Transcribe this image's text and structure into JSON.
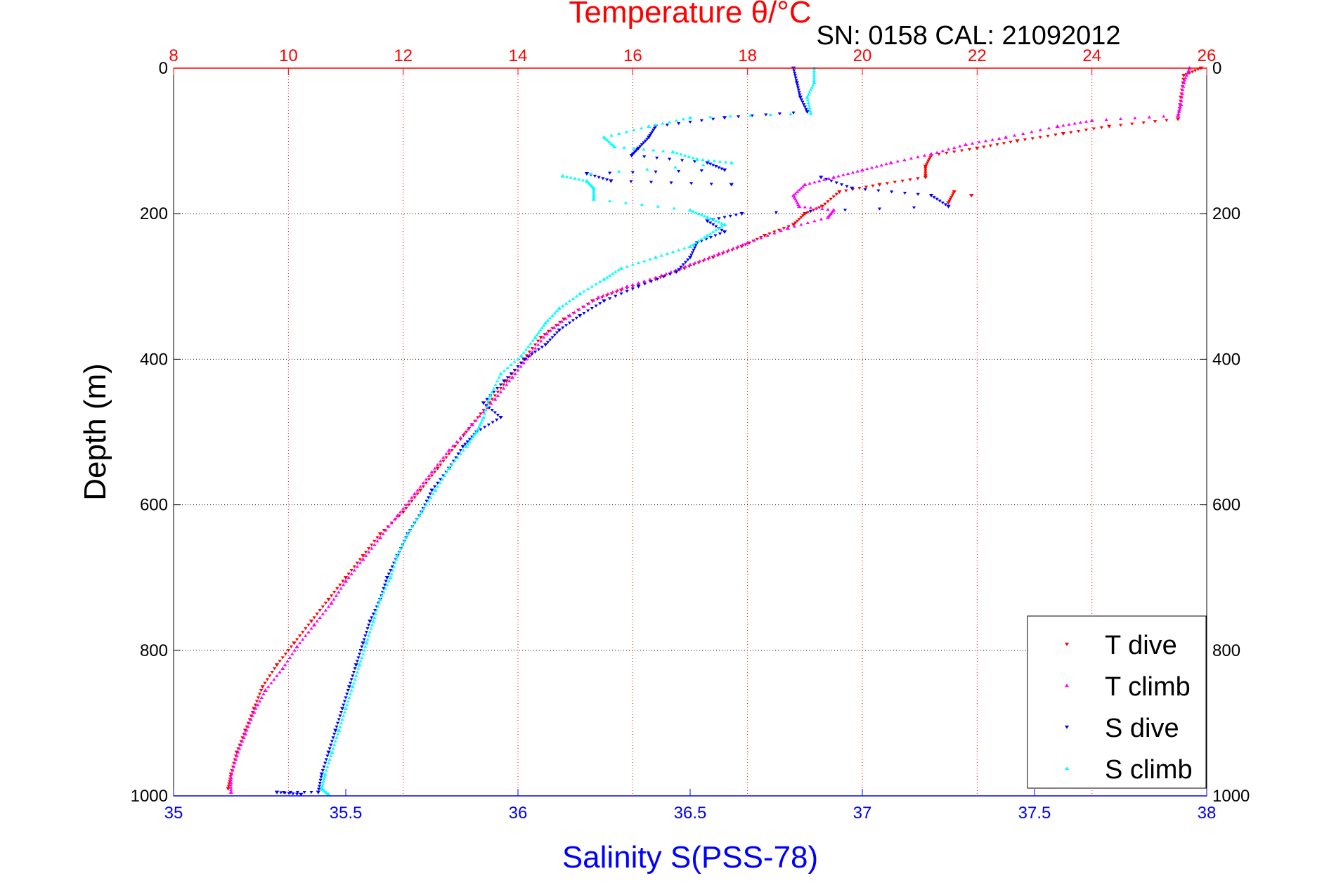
{
  "chart_data": {
    "type": "scatter",
    "title": "Temperature θ/°C",
    "subtitle": "SN: 0158  CAL: 21092012",
    "xlabel_bottom": "Salinity S(PSS-78)",
    "xlabel_top": "Temperature θ/°C",
    "ylabel": "Depth (m)",
    "ylim": [
      0,
      1000
    ],
    "y_reversed": true,
    "xlim_bottom": [
      35,
      38
    ],
    "xlim_top": [
      8,
      26
    ],
    "y_ticks": [
      "0",
      "200",
      "400",
      "600",
      "800",
      "1000"
    ],
    "y_tick_values": [
      0,
      200,
      400,
      600,
      800,
      1000
    ],
    "x_bottom_ticks": [
      "35",
      "35.5",
      "36",
      "36.5",
      "37",
      "37.5",
      "38"
    ],
    "x_bottom_tick_values": [
      35,
      35.5,
      36,
      36.5,
      37,
      37.5,
      38
    ],
    "x_top_ticks": [
      "8",
      "10",
      "12",
      "14",
      "16",
      "18",
      "20",
      "22",
      "24",
      "26"
    ],
    "x_top_tick_values": [
      8,
      10,
      12,
      14,
      16,
      18,
      20,
      22,
      24,
      26
    ],
    "grid": true,
    "legend_position": "bottom-right",
    "colors": {
      "t_dive": "#ff0000",
      "t_climb": "#ff00ff",
      "s_dive": "#0000ff",
      "s_climb": "#00ffff",
      "top_axis": "#ff0000",
      "bottom_axis": "#0000ff",
      "grid_top": "#ff0000",
      "grid_y": "#000000"
    },
    "series": [
      {
        "name": "T dive",
        "axis": "temperature",
        "marker": "triangle-down",
        "points": [
          [
            25.9,
            0
          ],
          [
            25.6,
            10
          ],
          [
            25.55,
            40
          ],
          [
            25.5,
            70
          ],
          [
            24.3,
            80
          ],
          [
            23.5,
            90
          ],
          [
            22.7,
            100
          ],
          [
            22.0,
            110
          ],
          [
            21.2,
            120
          ],
          [
            21.1,
            135
          ],
          [
            21.1,
            150
          ],
          [
            20.3,
            160
          ],
          [
            19.6,
            170
          ],
          [
            19.3,
            190
          ],
          [
            19.0,
            200
          ],
          [
            18.8,
            215
          ],
          [
            18.3,
            230
          ],
          [
            17.9,
            245
          ],
          [
            17.4,
            260
          ],
          [
            16.9,
            275
          ],
          [
            16.4,
            290
          ],
          [
            15.8,
            305
          ],
          [
            15.3,
            320
          ],
          [
            14.8,
            345
          ],
          [
            14.4,
            370
          ],
          [
            14.1,
            400
          ],
          [
            13.8,
            430
          ],
          [
            13.5,
            460
          ],
          [
            13.2,
            490
          ],
          [
            12.9,
            520
          ],
          [
            12.6,
            550
          ],
          [
            12.3,
            580
          ],
          [
            12.0,
            610
          ],
          [
            11.6,
            640
          ],
          [
            11.3,
            670
          ],
          [
            11.0,
            700
          ],
          [
            10.7,
            730
          ],
          [
            10.4,
            760
          ],
          [
            10.1,
            790
          ],
          [
            9.8,
            820
          ],
          [
            9.55,
            850
          ],
          [
            9.4,
            880
          ],
          [
            9.25,
            910
          ],
          [
            9.1,
            940
          ],
          [
            9.0,
            970
          ],
          [
            8.95,
            990
          ],
          [
            21.6,
            170
          ],
          [
            21.5,
            185
          ],
          [
            21.9,
            175
          ]
        ]
      },
      {
        "name": "T climb",
        "axis": "temperature",
        "marker": "triangle-up",
        "points": [
          [
            25.7,
            0
          ],
          [
            25.6,
            20
          ],
          [
            25.55,
            50
          ],
          [
            25.5,
            65
          ],
          [
            24.0,
            72
          ],
          [
            23.4,
            80
          ],
          [
            22.5,
            95
          ],
          [
            21.8,
            105
          ],
          [
            21.2,
            118
          ],
          [
            20.5,
            130
          ],
          [
            20.0,
            140
          ],
          [
            19.5,
            150
          ],
          [
            19.0,
            160
          ],
          [
            18.8,
            175
          ],
          [
            18.9,
            190
          ],
          [
            19.5,
            195
          ],
          [
            19.4,
            205
          ],
          [
            18.7,
            220
          ],
          [
            18.0,
            240
          ],
          [
            17.5,
            255
          ],
          [
            17.0,
            270
          ],
          [
            16.5,
            285
          ],
          [
            15.9,
            300
          ],
          [
            15.4,
            315
          ],
          [
            14.9,
            340
          ],
          [
            14.5,
            365
          ],
          [
            14.2,
            395
          ],
          [
            13.9,
            425
          ],
          [
            13.6,
            455
          ],
          [
            13.2,
            490
          ],
          [
            12.8,
            525
          ],
          [
            12.5,
            555
          ],
          [
            12.2,
            585
          ],
          [
            11.9,
            615
          ],
          [
            11.6,
            645
          ],
          [
            11.3,
            675
          ],
          [
            11.0,
            705
          ],
          [
            10.75,
            735
          ],
          [
            10.45,
            765
          ],
          [
            10.15,
            795
          ],
          [
            9.9,
            825
          ],
          [
            9.6,
            855
          ],
          [
            9.4,
            885
          ],
          [
            9.25,
            915
          ],
          [
            9.1,
            945
          ],
          [
            9.0,
            975
          ],
          [
            9.0,
            995
          ]
        ]
      },
      {
        "name": "S dive",
        "axis": "salinity",
        "marker": "triangle-down",
        "points": [
          [
            36.8,
            0
          ],
          [
            36.81,
            20
          ],
          [
            36.82,
            40
          ],
          [
            36.84,
            60
          ],
          [
            36.6,
            68
          ],
          [
            36.4,
            80
          ],
          [
            36.38,
            95
          ],
          [
            36.35,
            110
          ],
          [
            36.33,
            120
          ],
          [
            36.55,
            130
          ],
          [
            36.6,
            140
          ],
          [
            36.2,
            145
          ],
          [
            36.27,
            155
          ],
          [
            36.62,
            160
          ],
          [
            36.88,
            150
          ],
          [
            36.97,
            165
          ],
          [
            37.2,
            175
          ],
          [
            37.25,
            190
          ],
          [
            36.65,
            200
          ],
          [
            36.55,
            210
          ],
          [
            36.6,
            225
          ],
          [
            36.52,
            240
          ],
          [
            36.5,
            260
          ],
          [
            36.46,
            280
          ],
          [
            36.35,
            300
          ],
          [
            36.25,
            320
          ],
          [
            36.18,
            340
          ],
          [
            36.12,
            360
          ],
          [
            36.08,
            380
          ],
          [
            36.02,
            400
          ],
          [
            35.96,
            430
          ],
          [
            35.9,
            460
          ],
          [
            35.95,
            480
          ],
          [
            35.88,
            500
          ],
          [
            35.84,
            520
          ],
          [
            35.8,
            550
          ],
          [
            35.75,
            580
          ],
          [
            35.72,
            610
          ],
          [
            35.68,
            640
          ],
          [
            35.65,
            670
          ],
          [
            35.62,
            700
          ],
          [
            35.6,
            730
          ],
          [
            35.57,
            760
          ],
          [
            35.55,
            790
          ],
          [
            35.53,
            820
          ],
          [
            35.51,
            850
          ],
          [
            35.49,
            880
          ],
          [
            35.47,
            910
          ],
          [
            35.45,
            940
          ],
          [
            35.43,
            970
          ],
          [
            35.42,
            995
          ],
          [
            35.3,
            995
          ],
          [
            35.37,
            998
          ]
        ]
      },
      {
        "name": "S climb",
        "axis": "salinity",
        "marker": "triangle-up",
        "points": [
          [
            36.86,
            0
          ],
          [
            36.86,
            20
          ],
          [
            36.84,
            40
          ],
          [
            36.85,
            62
          ],
          [
            36.5,
            68
          ],
          [
            36.38,
            80
          ],
          [
            36.25,
            95
          ],
          [
            36.28,
            108
          ],
          [
            36.45,
            115
          ],
          [
            36.52,
            125
          ],
          [
            36.62,
            130
          ],
          [
            36.13,
            148
          ],
          [
            36.2,
            155
          ],
          [
            36.22,
            165
          ],
          [
            36.22,
            180
          ],
          [
            36.5,
            195
          ],
          [
            36.55,
            205
          ],
          [
            36.6,
            215
          ],
          [
            36.55,
            230
          ],
          [
            36.5,
            245
          ],
          [
            36.4,
            260
          ],
          [
            36.3,
            275
          ],
          [
            36.25,
            290
          ],
          [
            36.18,
            310
          ],
          [
            36.12,
            330
          ],
          [
            36.08,
            350
          ],
          [
            36.05,
            370
          ],
          [
            36.01,
            395
          ],
          [
            35.95,
            420
          ],
          [
            35.92,
            450
          ],
          [
            35.9,
            480
          ],
          [
            35.88,
            500
          ],
          [
            35.85,
            520
          ],
          [
            35.8,
            550
          ],
          [
            35.76,
            580
          ],
          [
            35.72,
            610
          ],
          [
            35.68,
            640
          ],
          [
            35.65,
            670
          ],
          [
            35.63,
            700
          ],
          [
            35.6,
            730
          ],
          [
            35.58,
            760
          ],
          [
            35.56,
            790
          ],
          [
            35.54,
            820
          ],
          [
            35.52,
            850
          ],
          [
            35.5,
            880
          ],
          [
            35.48,
            910
          ],
          [
            35.46,
            940
          ],
          [
            35.44,
            970
          ],
          [
            35.43,
            990
          ],
          [
            35.45,
            998
          ]
        ]
      }
    ],
    "legend": [
      "T dive",
      "T climb",
      "S dive",
      "S climb"
    ]
  }
}
